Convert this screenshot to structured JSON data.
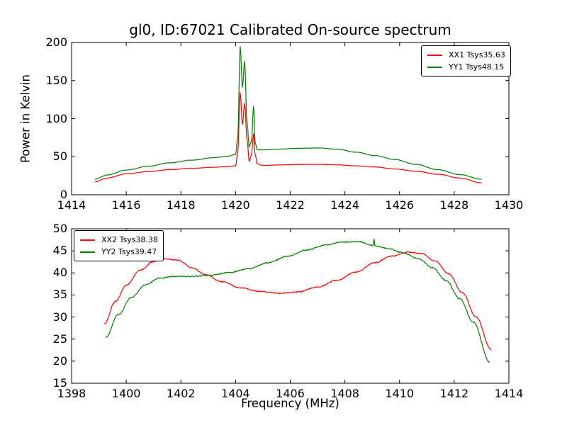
{
  "figure": {
    "background": "#ffffff",
    "axes_color": "#000000",
    "text_color": "#000000"
  },
  "chart_data": [
    {
      "type": "line",
      "title": "gl0, ID:67021 Calibrated On-source spectrum",
      "xlabel": "",
      "ylabel": "Power in Kelvin",
      "xlim": [
        1414,
        1430
      ],
      "ylim": [
        0,
        200
      ],
      "xticks": [
        1414,
        1416,
        1418,
        1420,
        1422,
        1424,
        1426,
        1428,
        1430
      ],
      "yticks": [
        0,
        50,
        100,
        150,
        200
      ],
      "grid": false,
      "legend": {
        "position": "top-right",
        "items": [
          {
            "label": "XX1 Tsys35.63",
            "color": "#ff0000"
          },
          {
            "label": "YY1 Tsys48.15",
            "color": "#008000"
          }
        ]
      },
      "series": [
        {
          "name": "XX1 Tsys35.63",
          "color": "#ff0000",
          "noise": 0.4,
          "points": [
            [
              1414.85,
              17
            ],
            [
              1415.3,
              22
            ],
            [
              1416,
              27.5
            ],
            [
              1416.8,
              30.5
            ],
            [
              1417.6,
              33
            ],
            [
              1418.4,
              34.8
            ],
            [
              1419.2,
              36.2
            ],
            [
              1419.7,
              37
            ],
            [
              1420.0,
              38.2
            ],
            [
              1420.08,
              55
            ],
            [
              1420.17,
              134
            ],
            [
              1420.25,
              92
            ],
            [
              1420.33,
              120
            ],
            [
              1420.42,
              72
            ],
            [
              1420.5,
              44
            ],
            [
              1420.58,
              52
            ],
            [
              1420.66,
              80
            ],
            [
              1420.72,
              52
            ],
            [
              1420.8,
              40.5
            ],
            [
              1421.0,
              38.5
            ],
            [
              1421.6,
              39.2
            ],
            [
              1422.3,
              39.8
            ],
            [
              1423.0,
              40
            ],
            [
              1423.7,
              39.3
            ],
            [
              1424.4,
              38
            ],
            [
              1425.1,
              36.5
            ],
            [
              1425.8,
              34
            ],
            [
              1426.6,
              31
            ],
            [
              1427.4,
              27
            ],
            [
              1428.2,
              22
            ],
            [
              1429.0,
              15.8
            ]
          ]
        },
        {
          "name": "YY1 Tsys48.15",
          "color": "#008000",
          "noise": 0.4,
          "points": [
            [
              1414.85,
              20.5
            ],
            [
              1415.3,
              26
            ],
            [
              1416,
              32.5
            ],
            [
              1416.8,
              37.5
            ],
            [
              1417.6,
              42
            ],
            [
              1418.4,
              45.5
            ],
            [
              1419.2,
              48.8
            ],
            [
              1419.7,
              50.5
            ],
            [
              1420.0,
              53
            ],
            [
              1420.08,
              75
            ],
            [
              1420.17,
              195
            ],
            [
              1420.25,
              141
            ],
            [
              1420.33,
              175
            ],
            [
              1420.42,
              95
            ],
            [
              1420.5,
              63
            ],
            [
              1420.58,
              70
            ],
            [
              1420.66,
              116
            ],
            [
              1420.72,
              68
            ],
            [
              1420.8,
              59
            ],
            [
              1421.0,
              59
            ],
            [
              1421.6,
              60
            ],
            [
              1422.3,
              61
            ],
            [
              1423.0,
              61.5
            ],
            [
              1423.7,
              60
            ],
            [
              1424.4,
              56
            ],
            [
              1425.1,
              51.5
            ],
            [
              1425.8,
              46.5
            ],
            [
              1426.6,
              40
            ],
            [
              1427.4,
              33
            ],
            [
              1428.2,
              26.5
            ],
            [
              1429.0,
              20.5
            ]
          ]
        }
      ]
    },
    {
      "type": "line",
      "title": "",
      "xlabel": "Frequency (MHz)",
      "ylabel": "",
      "xlim": [
        1398,
        1414
      ],
      "ylim": [
        15,
        50
      ],
      "xticks": [
        1398,
        1400,
        1402,
        1404,
        1406,
        1408,
        1410,
        1412,
        1414
      ],
      "yticks": [
        15,
        20,
        25,
        30,
        35,
        40,
        45,
        50
      ],
      "grid": false,
      "legend": {
        "position": "top-left",
        "items": [
          {
            "label": "XX2 Tsys38.38",
            "color": "#ff0000"
          },
          {
            "label": "YY2 Tsys39.47",
            "color": "#008000"
          }
        ]
      },
      "series": [
        {
          "name": "XX2 Tsys38.38",
          "color": "#ff0000",
          "noise": 0.22,
          "points": [
            [
              1399.2,
              28.5
            ],
            [
              1399.6,
              33.5
            ],
            [
              1400.0,
              37.2
            ],
            [
              1400.5,
              40.6
            ],
            [
              1401.0,
              42.6
            ],
            [
              1401.4,
              43.2
            ],
            [
              1401.9,
              42.9
            ],
            [
              1402.4,
              41.2
            ],
            [
              1402.9,
              39.6
            ],
            [
              1403.5,
              38
            ],
            [
              1404.2,
              36.6
            ],
            [
              1404.9,
              35.8
            ],
            [
              1405.6,
              35.4
            ],
            [
              1406.3,
              35.7
            ],
            [
              1407.0,
              36.8
            ],
            [
              1407.7,
              38.3
            ],
            [
              1408.4,
              40.2
            ],
            [
              1409.1,
              42.3
            ],
            [
              1409.7,
              43.8
            ],
            [
              1410.3,
              44.7
            ],
            [
              1410.8,
              44.4
            ],
            [
              1411.3,
              42.7
            ],
            [
              1411.8,
              39.8
            ],
            [
              1412.3,
              35.5
            ],
            [
              1412.8,
              30
            ],
            [
              1413.35,
              22.7
            ]
          ]
        },
        {
          "name": "YY2 Tsys39.47",
          "color": "#008000",
          "noise": 0.24,
          "points": [
            [
              1399.25,
              25.3
            ],
            [
              1399.7,
              30.5
            ],
            [
              1400.2,
              34.5
            ],
            [
              1400.7,
              37.3
            ],
            [
              1401.2,
              38.8
            ],
            [
              1401.7,
              39.2
            ],
            [
              1402.4,
              39.2
            ],
            [
              1403.1,
              39.5
            ],
            [
              1403.8,
              40.1
            ],
            [
              1404.5,
              41
            ],
            [
              1405.2,
              42.3
            ],
            [
              1405.9,
              43.8
            ],
            [
              1406.6,
              45.2
            ],
            [
              1407.3,
              46.3
            ],
            [
              1407.9,
              47
            ],
            [
              1408.5,
              47.1
            ],
            [
              1409.04,
              46.2
            ],
            [
              1409.07,
              47.8
            ],
            [
              1409.1,
              46.1
            ],
            [
              1409.6,
              45.5
            ],
            [
              1410.1,
              44.6
            ],
            [
              1410.7,
              43.2
            ],
            [
              1411.2,
              41.2
            ],
            [
              1411.7,
              38.3
            ],
            [
              1412.2,
              34.2
            ],
            [
              1412.7,
              28.8
            ],
            [
              1413.3,
              19.8
            ]
          ]
        }
      ]
    }
  ]
}
